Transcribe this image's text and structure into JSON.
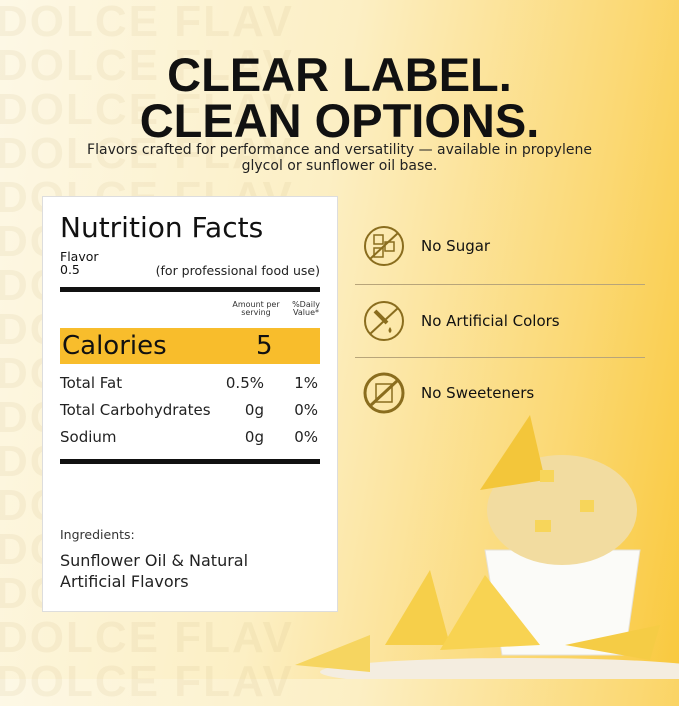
{
  "watermark": "DOLCE FLAV",
  "headline": {
    "line1": "CLEAR LABEL.",
    "line2": "CLEAN OPTIONS."
  },
  "subtitle": "Flavors crafted for performance and versatility — available in propylene glycol or sunflower oil base.",
  "label": {
    "title": "Nutrition Facts",
    "product": "Flavor",
    "serving": "0.5",
    "note": "(for professional food use)",
    "col_amount": "Amount per serving",
    "col_dv": "%Daily Value*",
    "calories_label": "Calories",
    "calories_value": "5",
    "rows": [
      {
        "name": "Total Fat",
        "amount": "0.5%",
        "dv": "1%"
      },
      {
        "name": "Total Carbohydrates",
        "amount": "0g",
        "dv": "0%"
      },
      {
        "name": "Sodium",
        "amount": "0g",
        "dv": "0%"
      }
    ],
    "ingredients_label": "Ingredients:",
    "ingredients": "Sunflower Oil & Natural Artificial Flavors",
    "highlight_color": "#f8bd2c"
  },
  "features": [
    {
      "icon": "no-sugar-icon",
      "label": "No Sugar"
    },
    {
      "icon": "no-artificial-colors-icon",
      "label": "No Artificial Colors"
    },
    {
      "icon": "no-sweeteners-icon",
      "label": "No Sweeteners"
    }
  ],
  "accent_color": "#8a6d1e"
}
